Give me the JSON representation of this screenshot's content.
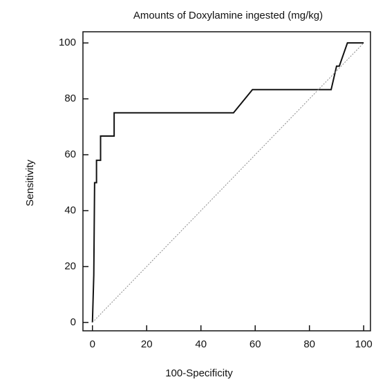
{
  "chart_data": {
    "type": "line",
    "title": "Amounts of Doxylamine ingested (mg/kg)",
    "x_label": "100-Specificity",
    "y_label": "Sensitivity",
    "xlim": [
      -3.5,
      102.5
    ],
    "ylim": [
      -3,
      104
    ],
    "xticks": [
      0,
      20,
      40,
      60,
      80,
      100
    ],
    "yticks": [
      0,
      20,
      40,
      60,
      80,
      100
    ],
    "series": [
      {
        "color": "#111111",
        "dash": false,
        "x": [
          0,
          0.5,
          0.8,
          1.5,
          1.5,
          3,
          3,
          8,
          8,
          52,
          59,
          88,
          90,
          91,
          94,
          100
        ],
        "values": [
          0,
          17,
          50,
          50,
          58,
          58,
          66.7,
          66.7,
          75,
          75,
          83.3,
          83.3,
          91.7,
          91.7,
          100,
          100
        ]
      },
      {
        "color": "#888888",
        "dash": true,
        "x": [
          0,
          100
        ],
        "values": [
          0,
          100
        ]
      }
    ]
  }
}
